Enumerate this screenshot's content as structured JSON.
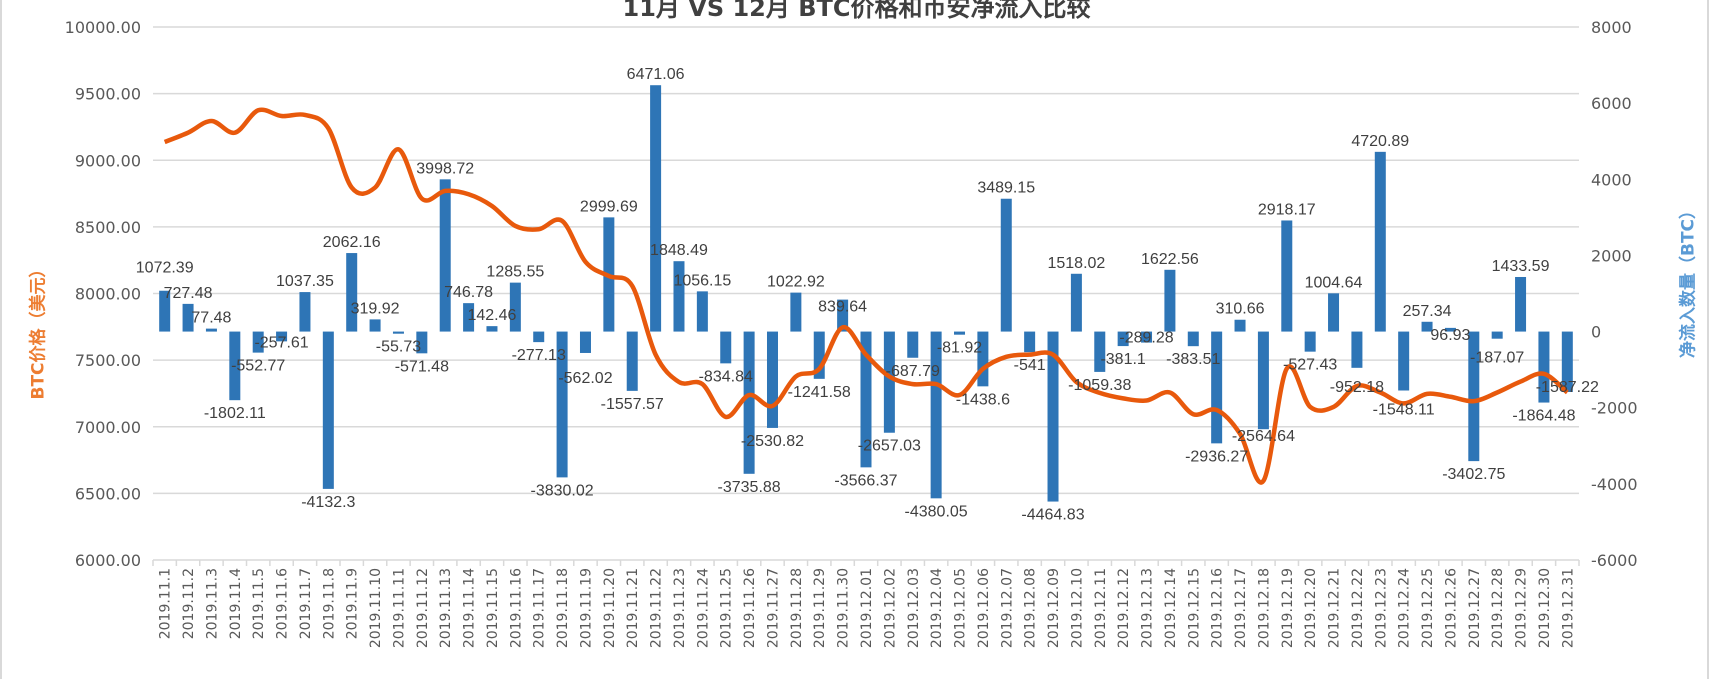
{
  "chart_data": {
    "type": "bar+line",
    "title": "11月 VS 12月 BTC价格和币安净流入比较",
    "ylabel_left": "BTC价格（美元）",
    "ylabel_right": "净流入数量（BTC）",
    "ylim_left": [
      6000,
      10000
    ],
    "ylim_right": [
      -6000,
      8000
    ],
    "yticks_left": [
      "6000.00",
      "6500.00",
      "7000.00",
      "7500.00",
      "8000.00",
      "8500.00",
      "9000.00",
      "9500.00",
      "10000.00"
    ],
    "yticks_right": [
      "-6000",
      "-4000",
      "-2000",
      "0",
      "2000",
      "4000",
      "6000",
      "8000"
    ],
    "grid": true,
    "categories": [
      "2019.11.1",
      "2019.11.2",
      "2019.11.3",
      "2019.11.4",
      "2019.11.5",
      "2019.11.6",
      "2019.11.7",
      "2019.11.8",
      "2019.11.9",
      "2019.11.10",
      "2019.11.11",
      "2019.11.12",
      "2019.11.13",
      "2019.11.14",
      "2019.11.15",
      "2019.11.16",
      "2019.11.17",
      "2019.11.18",
      "2019.11.19",
      "2019.11.20",
      "2019.11.21",
      "2019.11.22",
      "2019.11.23",
      "2019.11.24",
      "2019.11.25",
      "2019.11.26",
      "2019.11.27",
      "2019.11.28",
      "2019.11.29",
      "2019.11.30",
      "2019.12.01",
      "2019.12.02",
      "2019.12.03",
      "2019.12.04",
      "2019.12.05",
      "2019.12.06",
      "2019.12.07",
      "2019.12.08",
      "2019.12.09",
      "2019.12.10",
      "2019.12.11",
      "2019.12.12",
      "2019.12.13",
      "2019.12.14",
      "2019.12.15",
      "2019.12.16",
      "2019.12.17",
      "2019.12.18",
      "2019.12.19",
      "2019.12.20",
      "2019.12.21",
      "2019.12.22",
      "2019.12.23",
      "2019.12.24",
      "2019.12.25",
      "2019.12.26",
      "2019.12.27",
      "2019.12.28",
      "2019.12.29",
      "2019.12.30",
      "2019.12.31"
    ],
    "series": [
      {
        "name": "币安净流入",
        "type": "bar",
        "axis": "right",
        "color": "#2E75B6",
        "values": [
          1072.39,
          727.48,
          77.48,
          -1802.11,
          -552.77,
          -257.61,
          1037.35,
          -4132.3,
          2062.16,
          319.92,
          -55.73,
          -571.48,
          3998.72,
          746.78,
          142.46,
          1285.55,
          -277.13,
          -3830.02,
          -562.02,
          2999.69,
          -1557.57,
          6471.06,
          1848.49,
          1056.15,
          -834.84,
          -3735.88,
          -2530.82,
          1022.92,
          -1241.58,
          839.64,
          -3566.37,
          -2657.03,
          -687.79,
          -4380.05,
          -81.92,
          -1438.6,
          3489.15,
          -541,
          -4464.83,
          1518.02,
          -1059.38,
          -381.1,
          -289.28,
          1622.56,
          -383.51,
          -2936.27,
          310.66,
          -2564.64,
          2918.17,
          -527.43,
          1004.64,
          -952.18,
          4720.89,
          -1548.11,
          257.34,
          96.93,
          -3402.75,
          -187.07,
          1433.59,
          -1864.48,
          -1587.22
        ],
        "labels": [
          "1072.39",
          "727.48",
          "77.48",
          "-1802.11",
          "-552.77",
          "-257.61",
          "1037.35",
          "-4132.3",
          "2062.16",
          "319.92",
          "-55.73",
          "-571.48",
          "3998.72",
          "746.78",
          "142.46",
          "1285.55",
          "-277.13",
          "-3830.02",
          "-562.02",
          "2999.69",
          "-1557.57",
          "6471.06",
          "1848.49",
          "1056.15",
          "-834.84",
          "-3735.88",
          "-2530.82",
          "1022.92",
          "-1241.58",
          "839.64",
          "-3566.37",
          "-2657.03",
          "-687.79",
          "-4380.05",
          "-81.92",
          "-1438.6",
          "3489.15",
          "-541",
          "-4464.83",
          "1518.02",
          "-1059.38",
          "-381.1",
          "-289.28",
          "1622.56",
          "-383.51",
          "-2936.27",
          "310.66",
          "-2564.64",
          "2918.17",
          "-527.43",
          "1004.64",
          "-952.18",
          "4720.89",
          "-1548.11",
          "257.34",
          "96.93",
          "-3402.75",
          "-187.07",
          "1433.59",
          "-1864.48",
          "-1587.22"
        ]
      },
      {
        "name": "BTC价格",
        "type": "line",
        "axis": "left",
        "color": "#E8590C",
        "values": [
          9137,
          9207,
          9295,
          9207,
          9375,
          9332,
          9340,
          9240,
          8795,
          8795,
          9082,
          8712,
          8770,
          8745,
          8657,
          8507,
          8482,
          8545,
          8238,
          8131,
          8057,
          7541,
          7336,
          7320,
          7074,
          7238,
          7156,
          7377,
          7434,
          7746,
          7541,
          7377,
          7320,
          7320,
          7238,
          7434,
          7525,
          7541,
          7541,
          7336,
          7254,
          7213,
          7197,
          7257,
          7094,
          7126,
          6947,
          6594,
          7437,
          7149,
          7149,
          7306,
          7257,
          7175,
          7247,
          7225,
          7192,
          7257,
          7339,
          7397,
          7257
        ]
      }
    ]
  }
}
